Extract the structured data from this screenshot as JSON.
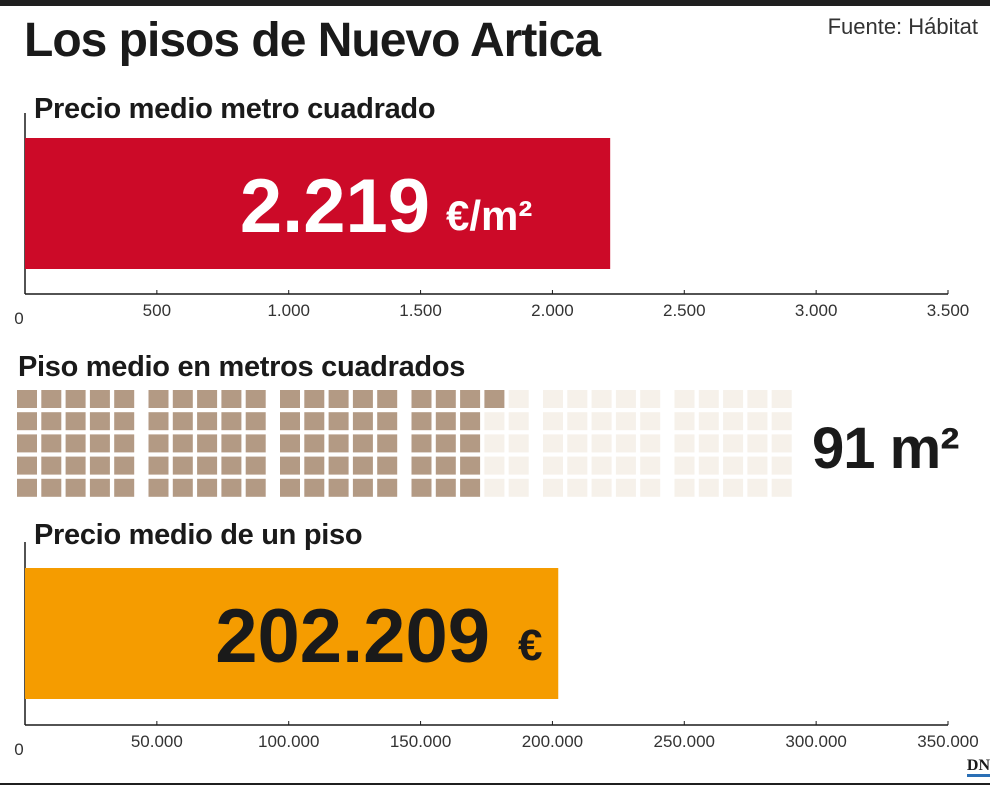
{
  "title": "Los pisos de Nuevo Artica",
  "source": "Fuente: Hábitat",
  "logo": "DN",
  "chart_data": [
    {
      "type": "bar",
      "title": "Precio medio metro cuadrado",
      "categories": [
        ""
      ],
      "values": [
        2219
      ],
      "value_label": "2.219",
      "unit_label": "€/m²",
      "xlim": [
        0,
        3500
      ],
      "ticks": [
        0,
        500,
        1000,
        1500,
        2000,
        2500,
        3000,
        3500
      ],
      "tick_labels": [
        "0",
        "500",
        "1.000",
        "1.500",
        "2.000",
        "2.500",
        "3.000",
        "3.500"
      ],
      "color": "#cc0a28"
    },
    {
      "type": "table",
      "title": "Piso medio en metros cuadrados",
      "value": 91,
      "total_squares": 150,
      "label": "91 m²",
      "color": "#b39a84",
      "empty_color": "#f6f1ea"
    },
    {
      "type": "bar",
      "title": "Precio medio de un piso",
      "categories": [
        ""
      ],
      "values": [
        202209
      ],
      "value_label": "202.209",
      "unit_label": "€",
      "xlim": [
        0,
        350000
      ],
      "ticks": [
        0,
        50000,
        100000,
        150000,
        200000,
        250000,
        300000,
        350000
      ],
      "tick_labels": [
        "0",
        "50.000",
        "100.000",
        "150.000",
        "200.000",
        "250.000",
        "300.000",
        "350.000"
      ],
      "color": "#f59c00"
    }
  ]
}
